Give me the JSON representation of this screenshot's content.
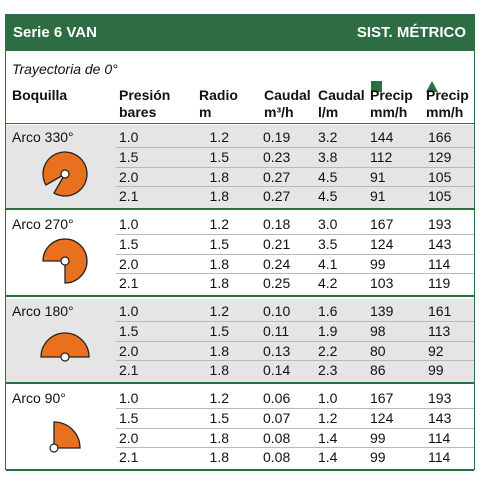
{
  "header": {
    "title": "Serie 6 VAN",
    "system": "SIST. MÉTRICO"
  },
  "trajectory": "Trayectoria de 0°",
  "legend_colors": {
    "header_green": "#2e6d43",
    "nozzle_orange": "#e8701f"
  },
  "columns": {
    "boquilla": "Boquilla",
    "presion": [
      "Presión",
      "bares"
    ],
    "radio": [
      "Radio",
      "m"
    ],
    "caudal_m3": [
      "Caudal",
      "m³/h"
    ],
    "caudal_lm": [
      "Caudal",
      "l/m"
    ],
    "precip_square": [
      "Precip",
      "mm/h"
    ],
    "precip_triangle": [
      "Precip",
      "mm/h"
    ],
    "square_symbol": "green-square-icon",
    "triangle_symbol": "green-triangle-icon"
  },
  "groups": [
    {
      "label": "Arco 330°",
      "arc_degrees": 330,
      "rows": [
        [
          "1.0",
          "1.2",
          "0.19",
          "3.2",
          "144",
          "166"
        ],
        [
          "1.5",
          "1.5",
          "0.23",
          "3.8",
          "112",
          "129"
        ],
        [
          "2.0",
          "1.8",
          "0.27",
          "4.5",
          "91",
          "105"
        ],
        [
          "2.1",
          "1.8",
          "0.27",
          "4.5",
          "91",
          "105"
        ]
      ]
    },
    {
      "label": "Arco 270°",
      "arc_degrees": 270,
      "rows": [
        [
          "1.0",
          "1.2",
          "0.18",
          "3.0",
          "167",
          "193"
        ],
        [
          "1.5",
          "1.5",
          "0.21",
          "3.5",
          "124",
          "143"
        ],
        [
          "2.0",
          "1.8",
          "0.24",
          "4.1",
          "99",
          "114"
        ],
        [
          "2.1",
          "1.8",
          "0.25",
          "4.2",
          "103",
          "119"
        ]
      ]
    },
    {
      "label": "Arco 180°",
      "arc_degrees": 180,
      "rows": [
        [
          "1.0",
          "1.2",
          "0.10",
          "1.6",
          "139",
          "161"
        ],
        [
          "1.5",
          "1.5",
          "0.11",
          "1.9",
          "98",
          "113"
        ],
        [
          "2.0",
          "1.8",
          "0.13",
          "2.2",
          "80",
          "92"
        ],
        [
          "2.1",
          "1.8",
          "0.14",
          "2.3",
          "86",
          "99"
        ]
      ]
    },
    {
      "label": "Arco 90°",
      "arc_degrees": 90,
      "rows": [
        [
          "1.0",
          "1.2",
          "0.06",
          "1.0",
          "167",
          "193"
        ],
        [
          "1.5",
          "1.5",
          "0.07",
          "1.2",
          "124",
          "143"
        ],
        [
          "2.0",
          "1.8",
          "0.08",
          "1.4",
          "99",
          "114"
        ],
        [
          "2.1",
          "1.8",
          "0.08",
          "1.4",
          "99",
          "114"
        ]
      ]
    }
  ]
}
